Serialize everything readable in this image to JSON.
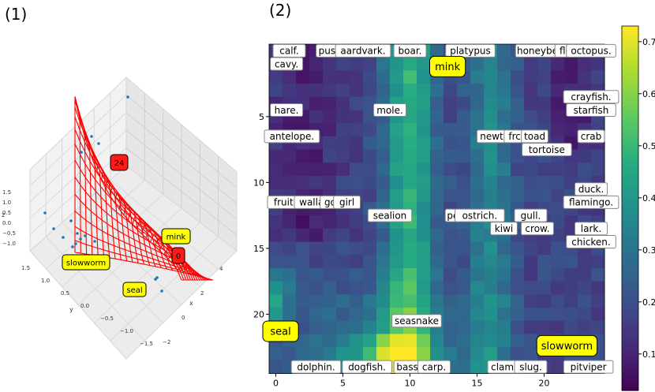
{
  "chart_data": [
    {
      "type": "surface3d",
      "panel_label": "(1)",
      "title": "",
      "axis_labels": {
        "x": "x",
        "y": "y",
        "z": "z"
      },
      "x_ticks": [
        "4",
        "2",
        "0",
        "−2"
      ],
      "y_ticks": [
        "1.5",
        "1.0",
        "0.5",
        "0.0",
        "−0.5",
        "−1.0",
        "−1.5"
      ],
      "z_ticks": [
        "1.5",
        "1.0",
        "0.5",
        "0.0",
        "−0.5",
        "−1.0"
      ],
      "surface_color": "#ff0000",
      "point_color": "#1f77b4",
      "annotations": [
        {
          "text": "24",
          "style": "red"
        },
        {
          "text": "mink",
          "style": "yellow"
        },
        {
          "text": "0",
          "style": "red"
        },
        {
          "text": "slowworm",
          "style": "yellow"
        },
        {
          "text": "seal",
          "style": "yellow"
        }
      ]
    },
    {
      "type": "heatmap",
      "panel_label": "(2)",
      "title": "",
      "xlabel": "",
      "ylabel": "",
      "colormap": "viridis",
      "x_ticks": [
        0,
        5,
        10,
        15,
        20
      ],
      "y_ticks": [
        5,
        10,
        15,
        20
      ],
      "colorbar_ticks": [
        0.1,
        0.2,
        0.3,
        0.4,
        0.5,
        0.6,
        0.7
      ],
      "colorbar_range": [
        0.03,
        0.73
      ],
      "grid": {
        "cols": 25,
        "rows": 25
      },
      "labels": [
        {
          "text": "calf.",
          "col": 1,
          "row": 0,
          "style": "white"
        },
        {
          "text": "puss",
          "col": 4,
          "row": 0,
          "style": "white"
        },
        {
          "text": "aardvark.",
          "col": 6.5,
          "row": 0,
          "style": "white"
        },
        {
          "text": "boar.",
          "col": 10,
          "row": 0,
          "style": "white"
        },
        {
          "text": "platypus",
          "col": 14.5,
          "row": 0,
          "style": "white"
        },
        {
          "text": "honeybe",
          "col": 19.5,
          "row": 0,
          "style": "white"
        },
        {
          "text": "flea",
          "col": 21.8,
          "row": 0,
          "style": "white"
        },
        {
          "text": "octopus.",
          "col": 23.5,
          "row": 0,
          "style": "white"
        },
        {
          "text": "cavy.",
          "col": 0.8,
          "row": 1,
          "style": "white"
        },
        {
          "text": "mink",
          "col": 12.8,
          "row": 1.2,
          "style": "yellow"
        },
        {
          "text": "crayfish.",
          "col": 23.5,
          "row": 3.5,
          "style": "white"
        },
        {
          "text": "hare.",
          "col": 0.8,
          "row": 4.5,
          "style": "white"
        },
        {
          "text": "mole.",
          "col": 8.5,
          "row": 4.5,
          "style": "white"
        },
        {
          "text": "starfish",
          "col": 23.5,
          "row": 4.5,
          "style": "white"
        },
        {
          "text": "antelope.",
          "col": 1.2,
          "row": 6.5,
          "style": "white"
        },
        {
          "text": "newt.",
          "col": 16.2,
          "row": 6.5,
          "style": "white"
        },
        {
          "text": "frc",
          "col": 17.8,
          "row": 6.5,
          "style": "white"
        },
        {
          "text": "toad",
          "col": 19.3,
          "row": 6.5,
          "style": "white"
        },
        {
          "text": "crab",
          "col": 23.5,
          "row": 6.5,
          "style": "white"
        },
        {
          "text": "tortoise",
          "col": 20.2,
          "row": 7.5,
          "style": "white"
        },
        {
          "text": "duck.",
          "col": 23.5,
          "row": 10.5,
          "style": "white"
        },
        {
          "text": "fruitb",
          "col": 0.8,
          "row": 11.5,
          "style": "white"
        },
        {
          "text": "wallat",
          "col": 2.8,
          "row": 11.5,
          "style": "white"
        },
        {
          "text": "gori",
          "col": 4.3,
          "row": 11.5,
          "style": "white"
        },
        {
          "text": "girl",
          "col": 5.3,
          "row": 11.5,
          "style": "white"
        },
        {
          "text": "flamingo.",
          "col": 23.5,
          "row": 11.5,
          "style": "white"
        },
        {
          "text": "sealion",
          "col": 8.5,
          "row": 12.5,
          "style": "white"
        },
        {
          "text": "pe",
          "col": 13.2,
          "row": 12.5,
          "style": "white"
        },
        {
          "text": "ostrich.",
          "col": 15.2,
          "row": 12.5,
          "style": "white"
        },
        {
          "text": "gull.",
          "col": 19,
          "row": 12.5,
          "style": "white"
        },
        {
          "text": "kiwi",
          "col": 17,
          "row": 13.5,
          "style": "white"
        },
        {
          "text": "crow.",
          "col": 19.5,
          "row": 13.5,
          "style": "white"
        },
        {
          "text": "lark.",
          "col": 23.5,
          "row": 13.5,
          "style": "white"
        },
        {
          "text": "chicken.",
          "col": 23.5,
          "row": 14.5,
          "style": "white"
        },
        {
          "text": "seasnake",
          "col": 10.5,
          "row": 20.5,
          "style": "white"
        },
        {
          "text": "seal",
          "col": 0,
          "row": 21.3,
          "style": "yellow"
        },
        {
          "text": "slowworm",
          "col": 21.7,
          "row": 22.4,
          "style": "yellow"
        },
        {
          "text": "dolphin.",
          "col": 3,
          "row": 24,
          "style": "white"
        },
        {
          "text": "dogfish.",
          "col": 6.8,
          "row": 24,
          "style": "white"
        },
        {
          "text": "bass",
          "col": 9.8,
          "row": 24,
          "style": "white"
        },
        {
          "text": "carp.",
          "col": 11.8,
          "row": 24,
          "style": "white"
        },
        {
          "text": "clam.",
          "col": 17,
          "row": 24,
          "style": "white"
        },
        {
          "text": "slug.",
          "col": 19,
          "row": 24,
          "style": "white"
        },
        {
          "text": "pitviper",
          "col": 23.3,
          "row": 24,
          "style": "white"
        }
      ]
    }
  ]
}
